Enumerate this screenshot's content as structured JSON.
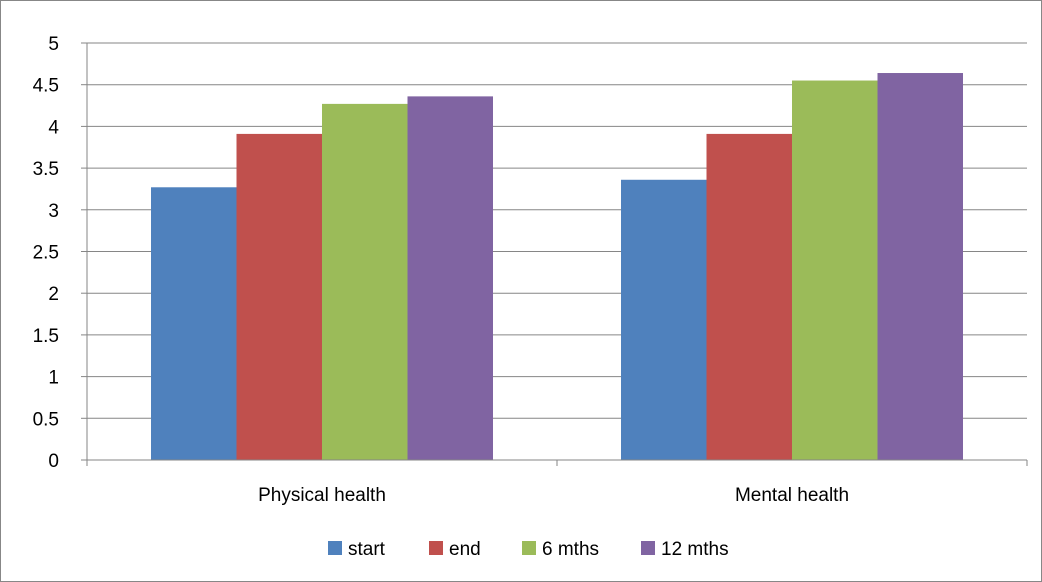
{
  "chart_data": {
    "type": "bar",
    "title": "",
    "xlabel": "",
    "ylabel": "",
    "categories": [
      "Physical health",
      "Mental health"
    ],
    "series": [
      {
        "name": "start",
        "values": [
          3.27,
          3.36
        ],
        "color": "#4F81BD"
      },
      {
        "name": "end",
        "values": [
          3.91,
          3.91
        ],
        "color": "#C0504D"
      },
      {
        "name": "6 mths",
        "values": [
          4.27,
          4.55
        ],
        "color": "#9BBB59"
      },
      {
        "name": "12 mths",
        "values": [
          4.36,
          4.64
        ],
        "color": "#8064A2"
      }
    ],
    "ylim": [
      0,
      5
    ],
    "yticks": [
      "0",
      "0.5",
      "1",
      "1.5",
      "2",
      "2.5",
      "3",
      "3.5",
      "4",
      "4.5",
      "5"
    ],
    "grid": true,
    "legend_position": "bottom",
    "gridline_color": "#868686"
  }
}
